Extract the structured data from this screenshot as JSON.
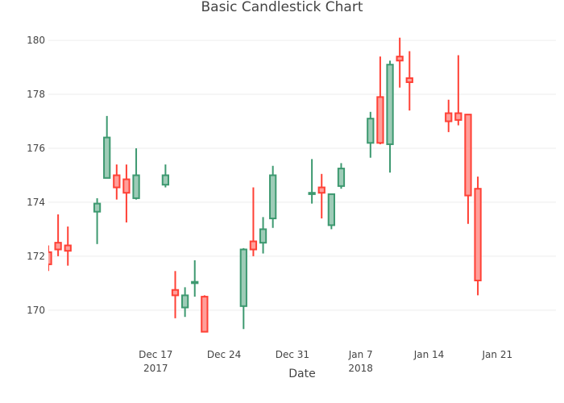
{
  "chart_data": {
    "type": "candlestick",
    "title": "Basic Candlestick Chart",
    "xlabel": "Date",
    "ylabel": "",
    "ylim": [
      168.8,
      180.6
    ],
    "xlim": [
      "2017-12-06",
      "2018-01-27"
    ],
    "y_ticks": [
      170,
      172,
      174,
      176,
      178,
      180
    ],
    "x_ticks": [
      {
        "date": "2017-12-17",
        "line1": "Dec 17",
        "line2": "2017"
      },
      {
        "date": "2017-12-24",
        "line1": "Dec 24",
        "line2": ""
      },
      {
        "date": "2017-12-31",
        "line1": "Dec 31",
        "line2": ""
      },
      {
        "date": "2018-01-07",
        "line1": "Jan 7",
        "line2": "2018"
      },
      {
        "date": "2018-01-14",
        "line1": "Jan 14",
        "line2": ""
      },
      {
        "date": "2018-01-21",
        "line1": "Jan 21",
        "line2": ""
      }
    ],
    "grid": true,
    "colors": {
      "increasing_line": "#3D9970",
      "increasing_fill": "#9ECCB7",
      "decreasing_line": "#FF4136",
      "decreasing_fill": "#FF9F9A",
      "grid": "#EEEEEE",
      "text": "#444444"
    },
    "candles": [
      {
        "date": "2017-12-06",
        "open": 172.15,
        "high": 172.4,
        "low": 171.45,
        "close": 171.7
      },
      {
        "date": "2017-12-07",
        "open": 172.5,
        "high": 173.55,
        "low": 172.0,
        "close": 172.25
      },
      {
        "date": "2017-12-08",
        "open": 172.4,
        "high": 173.1,
        "low": 171.65,
        "close": 172.2
      },
      {
        "date": "2017-12-11",
        "open": 173.65,
        "high": 174.15,
        "low": 172.45,
        "close": 173.95
      },
      {
        "date": "2017-12-12",
        "open": 174.9,
        "high": 177.2,
        "low": 174.9,
        "close": 176.4
      },
      {
        "date": "2017-12-13",
        "open": 175.0,
        "high": 175.4,
        "low": 174.1,
        "close": 174.55
      },
      {
        "date": "2017-12-14",
        "open": 174.85,
        "high": 175.4,
        "low": 173.25,
        "close": 174.35
      },
      {
        "date": "2017-12-15",
        "open": 174.15,
        "high": 176.0,
        "low": 174.1,
        "close": 175.0
      },
      {
        "date": "2017-12-18",
        "open": 174.65,
        "high": 175.4,
        "low": 174.55,
        "close": 175.0
      },
      {
        "date": "2017-12-19",
        "open": 170.75,
        "high": 171.45,
        "low": 169.7,
        "close": 170.55
      },
      {
        "date": "2017-12-20",
        "open": 170.1,
        "high": 170.85,
        "low": 169.75,
        "close": 170.55
      },
      {
        "date": "2017-12-21",
        "open": 171.0,
        "high": 171.85,
        "low": 170.5,
        "close": 171.05
      },
      {
        "date": "2017-12-22",
        "open": 170.5,
        "high": 170.55,
        "low": 169.2,
        "close": 169.2
      },
      {
        "date": "2017-12-26",
        "open": 170.15,
        "high": 172.3,
        "low": 169.3,
        "close": 172.25
      },
      {
        "date": "2017-12-27",
        "open": 172.55,
        "high": 174.55,
        "low": 172.0,
        "close": 172.25
      },
      {
        "date": "2017-12-28",
        "open": 172.5,
        "high": 173.45,
        "low": 172.1,
        "close": 173.0
      },
      {
        "date": "2017-12-29",
        "open": 173.4,
        "high": 175.35,
        "low": 173.05,
        "close": 175.0
      },
      {
        "date": "2018-01-02",
        "open": 174.3,
        "high": 175.6,
        "low": 173.95,
        "close": 174.35
      },
      {
        "date": "2018-01-03",
        "open": 174.55,
        "high": 175.05,
        "low": 173.4,
        "close": 174.35
      },
      {
        "date": "2018-01-04",
        "open": 173.15,
        "high": 174.3,
        "low": 173.0,
        "close": 174.3
      },
      {
        "date": "2018-01-05",
        "open": 174.6,
        "high": 175.45,
        "low": 174.5,
        "close": 175.25
      },
      {
        "date": "2018-01-08",
        "open": 176.2,
        "high": 177.35,
        "low": 175.65,
        "close": 177.1
      },
      {
        "date": "2018-01-09",
        "open": 177.9,
        "high": 179.4,
        "low": 176.15,
        "close": 176.2
      },
      {
        "date": "2018-01-10",
        "open": 176.15,
        "high": 179.25,
        "low": 175.1,
        "close": 179.1
      },
      {
        "date": "2018-01-11",
        "open": 179.4,
        "high": 180.1,
        "low": 178.25,
        "close": 179.25
      },
      {
        "date": "2018-01-12",
        "open": 178.6,
        "high": 179.6,
        "low": 177.4,
        "close": 178.45
      },
      {
        "date": "2018-01-16",
        "open": 177.3,
        "high": 177.8,
        "low": 176.6,
        "close": 177.0
      },
      {
        "date": "2018-01-17",
        "open": 177.3,
        "high": 179.45,
        "low": 176.85,
        "close": 177.05
      },
      {
        "date": "2018-01-18",
        "open": 177.25,
        "high": 177.25,
        "low": 173.2,
        "close": 174.25
      },
      {
        "date": "2018-01-19",
        "open": 174.5,
        "high": 174.95,
        "low": 170.55,
        "close": 171.1
      }
    ]
  }
}
